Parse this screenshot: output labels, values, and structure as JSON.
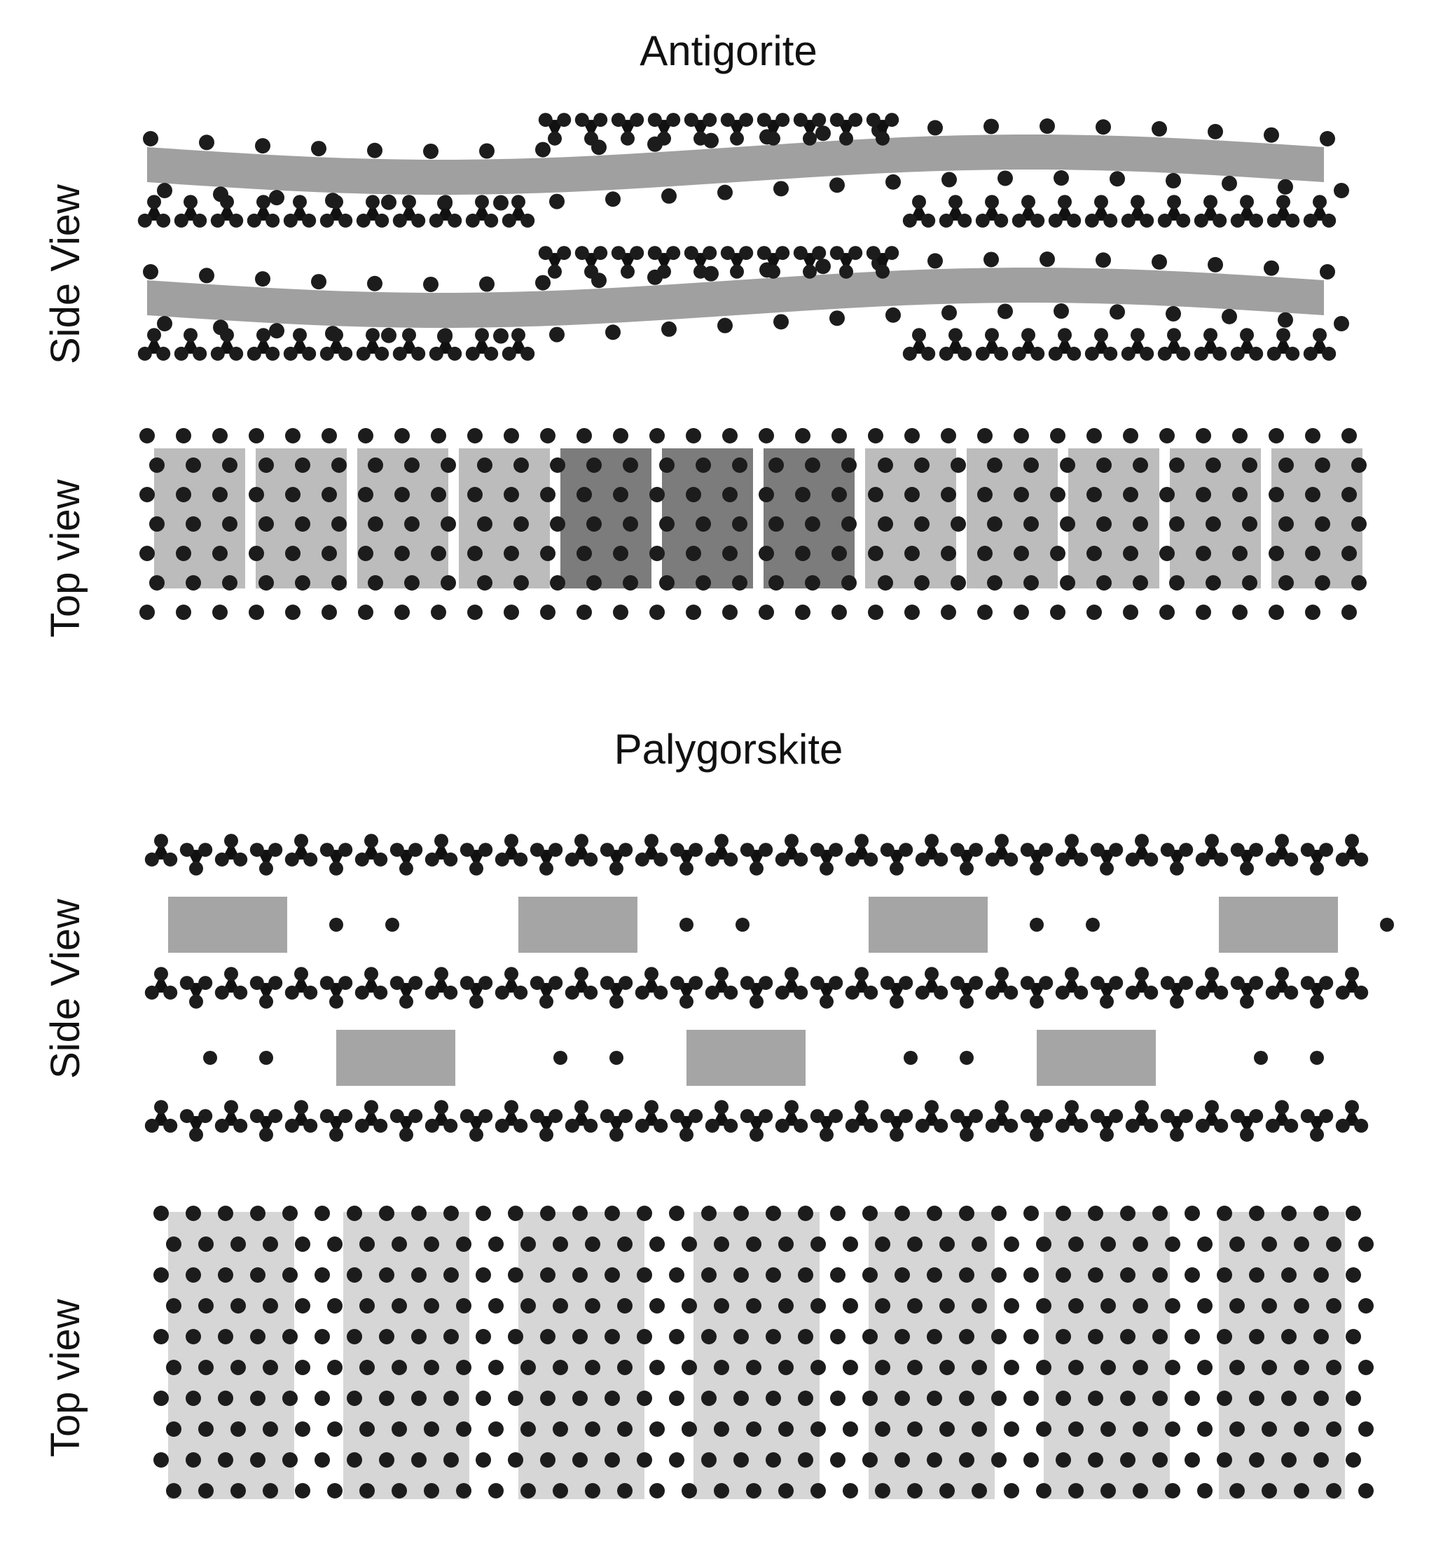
{
  "sections": [
    {
      "title": "Antigorite",
      "views": [
        "Side View",
        "Top view"
      ]
    },
    {
      "title": "Palygorskite",
      "views": [
        "Side View",
        "Top view"
      ]
    }
  ],
  "colors": {
    "atom": "#1c1c1c",
    "tetrahedra": "#111111",
    "octahedra": "#8f8f8f",
    "octahedra_light": "#c4c4c4"
  }
}
